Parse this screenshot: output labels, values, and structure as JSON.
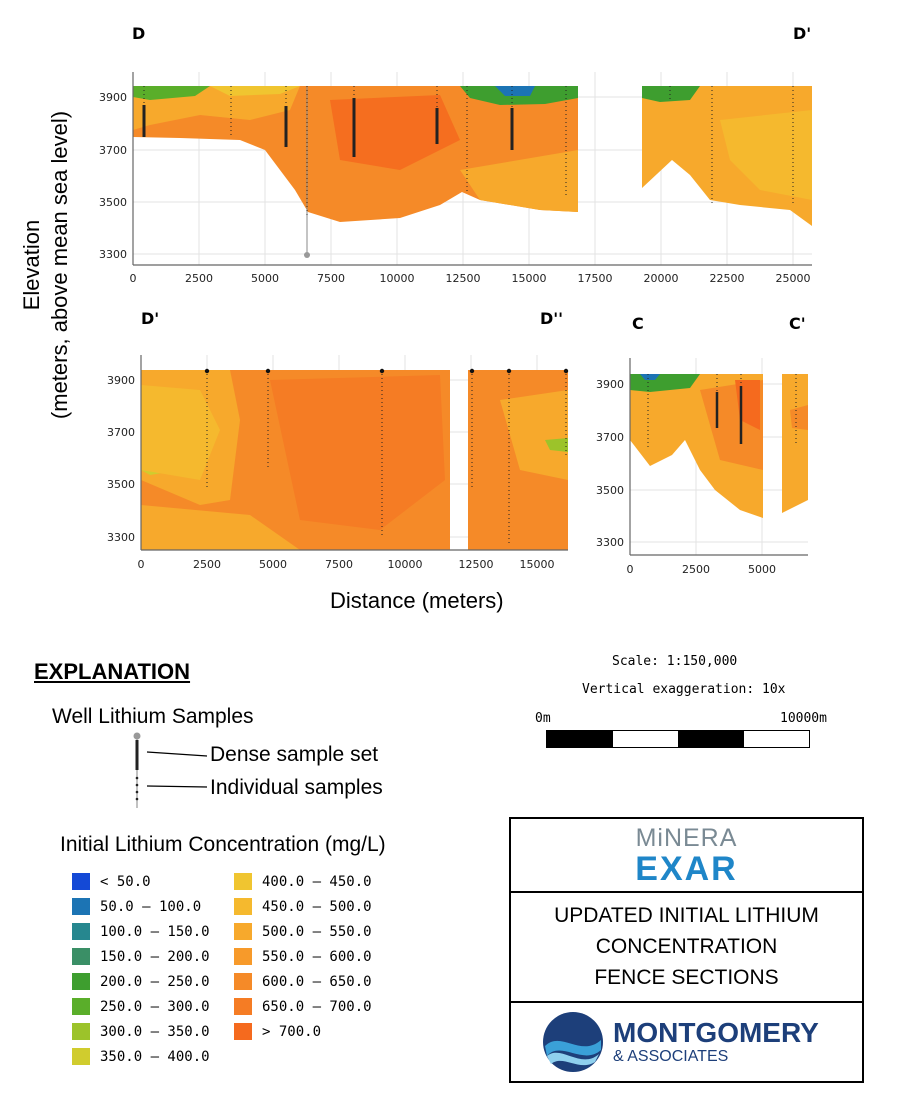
{
  "sections": {
    "top": {
      "left_label": "D",
      "right_label": "D'"
    },
    "bottom_left": {
      "left_label": "D'",
      "right_label": "D''"
    },
    "bottom_right": {
      "left_label": "C",
      "right_label": "C'"
    }
  },
  "axes": {
    "ylabel_line1": "Elevation",
    "ylabel_line2": "(meters, above mean sea level)",
    "xlabel": "Distance (meters)",
    "y_ticks": [
      "3900",
      "3700",
      "3500",
      "3300"
    ],
    "top_x_ticks": [
      "0",
      "2500",
      "5000",
      "7500",
      "10000",
      "12500",
      "15000",
      "17500",
      "20000",
      "22500",
      "25000"
    ],
    "bl_x_ticks": [
      "0",
      "2500",
      "5000",
      "7500",
      "10000",
      "12500",
      "15000"
    ],
    "br_x_ticks": [
      "0",
      "2500",
      "5000"
    ]
  },
  "scale": {
    "scale_text": "Scale: 1:150,000",
    "vert_text": "Vertical exaggeration: 10x",
    "zero_label": "0m",
    "end_label": "10000m"
  },
  "explanation": {
    "title": "EXPLANATION",
    "well_title": "Well Lithium Samples",
    "dense_label": "Dense sample set",
    "individual_label": "Individual samples",
    "conc_title": "Initial Lithium Concentration (mg/L)",
    "legend_col1": [
      {
        "label": "< 50.0",
        "color": "#1449d6"
      },
      {
        "label": "50.0 – 100.0",
        "color": "#1c74b4"
      },
      {
        "label": "100.0 – 150.0",
        "color": "#26878f"
      },
      {
        "label": "150.0 – 200.0",
        "color": "#3a8f66"
      },
      {
        "label": "200.0 – 250.0",
        "color": "#3e9e2f"
      },
      {
        "label": "250.0 – 300.0",
        "color": "#5aae2a"
      },
      {
        "label": "300.0 – 350.0",
        "color": "#9cc32a"
      },
      {
        "label": "350.0 – 400.0",
        "color": "#d0cc2e"
      }
    ],
    "legend_col2": [
      {
        "label": "400.0 – 450.0",
        "color": "#f0c530"
      },
      {
        "label": "450.0 – 500.0",
        "color": "#f5b92e"
      },
      {
        "label": "500.0 – 550.0",
        "color": "#f7a92c"
      },
      {
        "label": "550.0 – 600.0",
        "color": "#f79a2a"
      },
      {
        "label": "600.0 – 650.0",
        "color": "#f58a28"
      },
      {
        "label": "650.0 – 700.0",
        "color": "#f57c24"
      },
      {
        "label": "> 700.0",
        "color": "#f56a1e"
      }
    ]
  },
  "title_block": {
    "logo_top_line1": "MiNERA",
    "logo_top_line2": "EXAR",
    "title_line1": "UPDATED INITIAL LITHIUM",
    "title_line2": "CONCENTRATION",
    "title_line3": "FENCE SECTIONS",
    "company_line1": "MONTGOMERY",
    "company_line2": "& ASSOCIATES"
  }
}
